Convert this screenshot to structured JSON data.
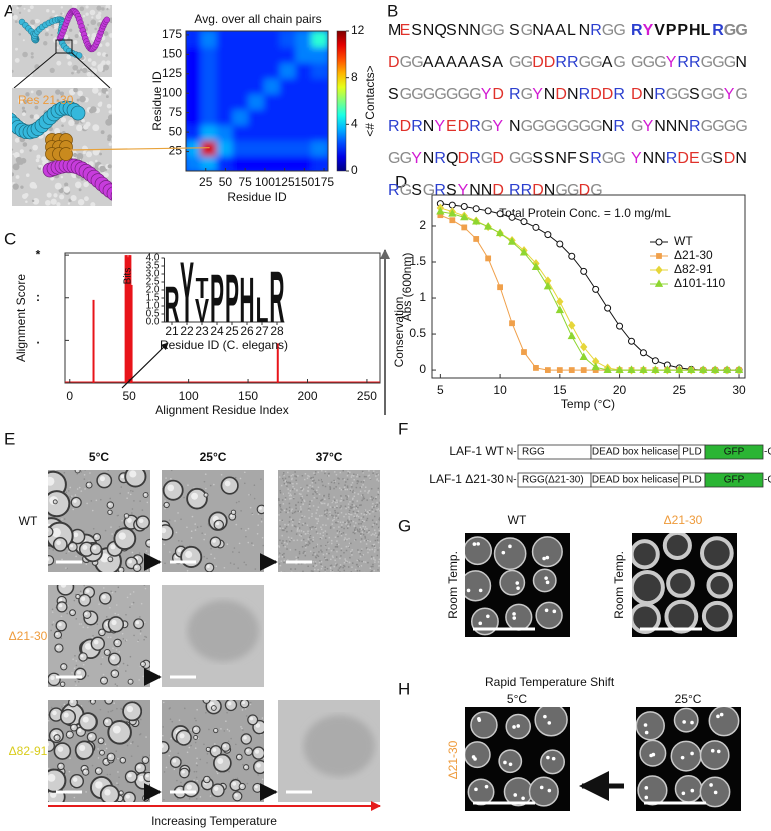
{
  "panel_labels": [
    "A",
    "B",
    "C",
    "D",
    "E",
    "F",
    "G",
    "H"
  ],
  "panel_a": {
    "zoom_label": "Res 21-30"
  },
  "chart_data": [
    {
      "type": "heatmap",
      "title": "Avg. over all chain pairs",
      "xlabel": "Residue ID",
      "ylabel": "Residue ID",
      "zlabel": "<# Contacts>",
      "x": [
        10,
        30,
        50,
        70,
        90,
        110,
        130,
        150,
        170
      ],
      "y": [
        10,
        30,
        50,
        70,
        90,
        110,
        130,
        150,
        170
      ],
      "z": [
        [
          3,
          3.5,
          2,
          1.5,
          1.5,
          1.5,
          1.5,
          1.5,
          2
        ],
        [
          3.5,
          11,
          3.5,
          2.5,
          2.5,
          2.5,
          2.5,
          2.5,
          3
        ],
        [
          2,
          3.5,
          3,
          2,
          2,
          2,
          2,
          2,
          2
        ],
        [
          1.5,
          2.5,
          2,
          3,
          2,
          2,
          2,
          2,
          2
        ],
        [
          1.5,
          2.5,
          2,
          2,
          3,
          2,
          2,
          2,
          2
        ],
        [
          1.5,
          2.5,
          2,
          2,
          2,
          3,
          2,
          2,
          2
        ],
        [
          1.5,
          2.5,
          2,
          2,
          2,
          2,
          3,
          2,
          2.5
        ],
        [
          1.5,
          2.5,
          2,
          2,
          2,
          2,
          2,
          3,
          3
        ],
        [
          2,
          3,
          2,
          2,
          2,
          2,
          2.5,
          3,
          5
        ]
      ],
      "xlim": [
        0,
        180
      ],
      "ylim": [
        0,
        180
      ],
      "xticks": [
        25,
        50,
        75,
        100,
        125,
        150,
        175
      ],
      "yticks": [
        25,
        50,
        75,
        100,
        125,
        150,
        175
      ],
      "zlim": [
        0,
        12
      ],
      "zticks": [
        0,
        4,
        8,
        12
      ],
      "colormap": "jet"
    },
    {
      "type": "bar",
      "xlabel": "Alignment Residue Index",
      "ylabel": "Alignment Score",
      "annotation": "Conservation",
      "x": [
        20,
        47,
        48,
        49,
        50,
        51,
        52,
        175
      ],
      "values": [
        1.95,
        3.0,
        3.0,
        2.95,
        3.0,
        3.0,
        2.3,
        0.93
      ],
      "color": "#e8141a",
      "xlim": [
        -4,
        261
      ],
      "ylim": [
        0,
        3.05
      ],
      "xticks": [
        0,
        50,
        100,
        150,
        200,
        250
      ],
      "yticks": [
        {
          "value": 1,
          "label": "."
        },
        {
          "value": 2,
          "label": ":"
        },
        {
          "value": 3,
          "label": "*"
        }
      ]
    },
    {
      "type": "logo",
      "xlabel": "Residue ID (C. elegans)",
      "ylabel": "Bits",
      "x": [
        21,
        22,
        23,
        24,
        25,
        26,
        27,
        28
      ],
      "stacks": [
        [
          {
            "letter": "R",
            "bits": 2.3
          }
        ],
        [
          {
            "letter": "Y",
            "bits": 3.9
          }
        ],
        [
          {
            "letter": "V",
            "bits": 1.5
          },
          {
            "letter": "T",
            "bits": 1.3
          }
        ],
        [
          {
            "letter": "P",
            "bits": 3.1
          }
        ],
        [
          {
            "letter": "P",
            "bits": 3.1
          }
        ],
        [
          {
            "letter": "H",
            "bits": 2.9
          }
        ],
        [
          {
            "letter": "L",
            "bits": 1.6
          }
        ],
        [
          {
            "letter": "R",
            "bits": 3.3
          }
        ]
      ],
      "letter_colors": {
        "R": "#2233dd",
        "Y": "#1b2a8a",
        "V": "#333333",
        "T": "#333333",
        "P": "#1a9a1a",
        "H": "#1a9a1a",
        "L": "#111111"
      },
      "xlim": [
        20.5,
        28.5
      ],
      "ylim": [
        0,
        4
      ],
      "yticks": [
        {
          "value": 0,
          "label": "0.0"
        },
        {
          "value": 0.5,
          "label": "0.5"
        },
        {
          "value": 1,
          "label": "1.0"
        },
        {
          "value": 1.5,
          "label": "1.5"
        },
        {
          "value": 2,
          "label": "2.0"
        },
        {
          "value": 2.5,
          "label": "2.5"
        },
        {
          "value": 3,
          "label": "3.0"
        },
        {
          "value": 3.5,
          "label": "3.5"
        },
        {
          "value": 4,
          "label": "4.0"
        }
      ]
    },
    {
      "type": "line",
      "title": "Total Protein Conc. = 1.0 mg/mL",
      "xlabel": "Temp (°C)",
      "ylabel": "Abs (600nm)",
      "x": [
        5,
        6,
        7,
        8,
        9,
        10,
        11,
        12,
        13,
        14,
        15,
        16,
        17,
        18,
        19,
        20,
        21,
        22,
        23,
        24,
        25,
        26,
        27,
        28,
        29,
        30
      ],
      "series": [
        {
          "name": "WT",
          "color": "#111111",
          "marker": "circle",
          "values": [
            2.31,
            2.29,
            2.27,
            2.24,
            2.21,
            2.17,
            2.12,
            2.06,
            1.98,
            1.88,
            1.75,
            1.58,
            1.37,
            1.12,
            0.86,
            0.61,
            0.4,
            0.24,
            0.13,
            0.07,
            0.03,
            0.01,
            0,
            0,
            0,
            0
          ]
        },
        {
          "name": "Δ21-30",
          "color": "#f0a04b",
          "marker": "square",
          "values": [
            2.15,
            2.08,
            1.98,
            1.82,
            1.55,
            1.15,
            0.65,
            0.25,
            0.03,
            0,
            0,
            0,
            0,
            0,
            0,
            0,
            0,
            0,
            0,
            0,
            0,
            0,
            0,
            0,
            0,
            0
          ]
        },
        {
          "name": "Δ82-91",
          "color": "#e6d63a",
          "marker": "diamond",
          "values": [
            2.25,
            2.2,
            2.14,
            2.07,
            1.99,
            1.9,
            1.8,
            1.66,
            1.48,
            1.24,
            0.95,
            0.62,
            0.32,
            0.12,
            0.03,
            0,
            0,
            0,
            0,
            0,
            0,
            0,
            0,
            0,
            0,
            0
          ]
        },
        {
          "name": "Δ101-110",
          "color": "#8ed630",
          "marker": "triangle",
          "values": [
            2.2,
            2.17,
            2.12,
            2.06,
            1.99,
            1.9,
            1.78,
            1.63,
            1.43,
            1.16,
            0.83,
            0.47,
            0.18,
            0.04,
            0,
            0,
            0,
            0,
            0,
            0,
            0,
            0,
            0,
            0,
            0,
            0
          ]
        }
      ],
      "xlim": [
        4.3,
        30.5
      ],
      "ylim": [
        -0.11,
        2.43
      ],
      "xticks": [
        5,
        10,
        15,
        20,
        25,
        30
      ],
      "yticks": [
        0,
        0.5,
        1,
        1.5,
        2
      ],
      "legend": "upper right"
    }
  ],
  "sequence": {
    "rows": [
      [
        {
          "text": "MESNQSNNGG"
        },
        {
          "text": "SGNAALNRGG"
        },
        {
          "text": "RYVPPHLRGG",
          "bold": true
        }
      ],
      [
        {
          "text": "DGGAAAAASA"
        },
        {
          "text": "GGDDRRGGAG"
        },
        {
          "text": "GGGYRRGGGN"
        }
      ],
      [
        {
          "text": "SGGGGGGGYD"
        },
        {
          "text": "RGYNDNRDDR"
        },
        {
          "text": "DNRGGSGGYG"
        }
      ],
      [
        {
          "text": "RDRNYEDRGY"
        },
        {
          "text": "NGGGGGGGNR"
        },
        {
          "text": "GYNNNRGGGG"
        }
      ],
      [
        {
          "text": "GGYNRQDRGD"
        },
        {
          "text": "GGSSNFSRGG"
        },
        {
          "text": "YNNRDEGSDN"
        }
      ],
      [
        {
          "text": "RGSGRSYNND"
        },
        {
          "text": "RRDNGGDG"
        }
      ]
    ],
    "letter_colors": {
      "R": "#2b3fcf",
      "D": "#e0312a",
      "E": "#e0312a",
      "Y": "#d21bd2",
      "G": "#8a8a8a"
    }
  },
  "micrographs": {
    "temperatures": [
      "5°C",
      "25°C",
      "37°C"
    ],
    "rows": [
      "WT",
      "Δ21-30",
      "Δ82-91"
    ],
    "axis_label": "Increasing Temperature"
  },
  "constructs": {
    "n_term": "N-",
    "c_term": "-C",
    "items": [
      {
        "name": "LAF-1 WT",
        "domains": [
          "RGG",
          "DEAD box helicase",
          "PLD",
          "GFP"
        ]
      },
      {
        "name": "LAF-1 Δ21-30",
        "domains": [
          "RGG(Δ21-30)",
          "DEAD box helicase",
          "PLD",
          "GFP"
        ]
      }
    ]
  },
  "panel_g": {
    "labels": [
      "WT",
      "Δ21-30"
    ],
    "condition": "Room Temp."
  },
  "panel_h": {
    "title": "Rapid Temperature Shift",
    "temperatures": [
      "5°C",
      "25°C"
    ],
    "label": "Δ21-30"
  }
}
